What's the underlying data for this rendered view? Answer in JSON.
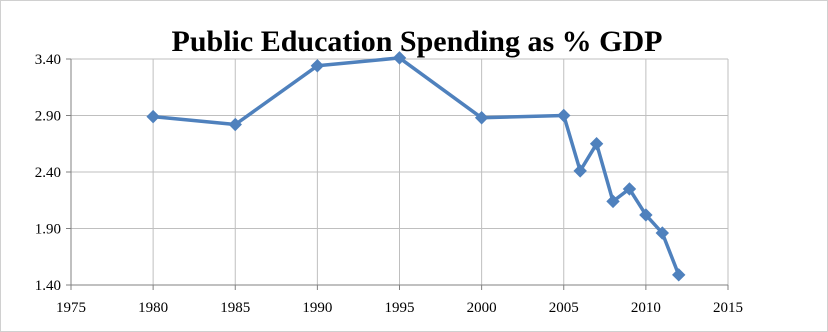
{
  "chart_data": {
    "type": "line",
    "title": "Public Education Spending as % GDP",
    "xlabel": "",
    "ylabel": "",
    "xlim": [
      1975,
      2015
    ],
    "ylim": [
      1.4,
      3.4
    ],
    "x_ticks": [
      "1975",
      "1980",
      "1985",
      "1990",
      "1995",
      "2000",
      "2005",
      "2010",
      "2015"
    ],
    "y_ticks": [
      "1.40",
      "1.90",
      "2.40",
      "2.90",
      "3.40"
    ],
    "grid": true,
    "legend": "none",
    "series": [
      {
        "color": "#4f81bd",
        "marker": "diamond",
        "x": [
          1980,
          1985,
          1990,
          1995,
          2000,
          2005,
          2006,
          2007,
          2008,
          2009,
          2010,
          2011,
          2012
        ],
        "y": [
          2.89,
          2.82,
          3.34,
          3.41,
          2.88,
          2.9,
          2.41,
          2.65,
          2.14,
          2.25,
          2.02,
          1.86,
          1.49
        ]
      }
    ]
  }
}
